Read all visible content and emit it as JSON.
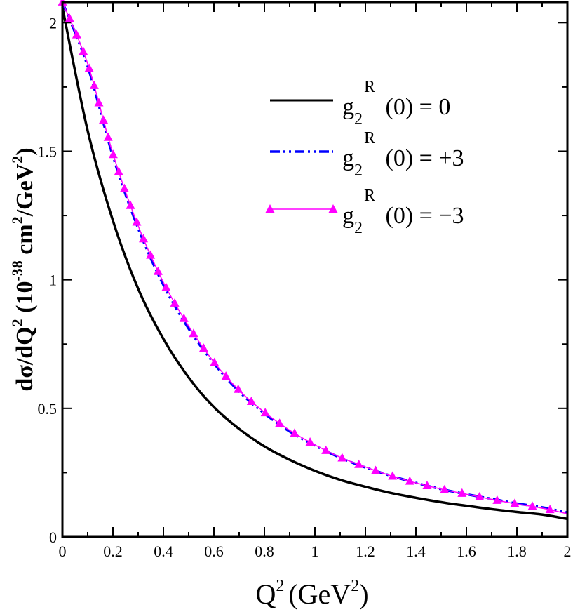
{
  "chart_data": {
    "type": "line",
    "title": "",
    "xlabel": {
      "base": "Q",
      "sup": "2",
      "units_open": "(GeV",
      "units_sup": "2",
      "units_close": ")"
    },
    "ylabel": {
      "part1": "d",
      "sigma": "σ",
      "part2": "/dQ",
      "sup1": "2",
      "part3": " (10",
      "sup2": "-38",
      "part4": " cm",
      "sup3": "2",
      "part5": "/GeV",
      "sup4": "2",
      "part6": ")"
    },
    "xlim": [
      0,
      2
    ],
    "ylim": [
      0,
      2.08
    ],
    "x_ticks": [
      {
        "value": 0,
        "label": "0"
      },
      {
        "value": 0.2,
        "label": "0.2"
      },
      {
        "value": 0.4,
        "label": "0.4"
      },
      {
        "value": 0.6,
        "label": "0.6"
      },
      {
        "value": 0.8,
        "label": "0.8"
      },
      {
        "value": 1,
        "label": "1"
      },
      {
        "value": 1.2,
        "label": "1.2"
      },
      {
        "value": 1.4,
        "label": "1.4"
      },
      {
        "value": 1.6,
        "label": "1.6"
      },
      {
        "value": 1.8,
        "label": "1.8"
      },
      {
        "value": 2,
        "label": "2"
      }
    ],
    "x_minor_ticks": [
      0.1,
      0.3,
      0.5,
      0.7,
      0.9,
      1.1,
      1.3,
      1.5,
      1.7,
      1.9
    ],
    "y_ticks": [
      {
        "value": 0,
        "label": "0"
      },
      {
        "value": 0.5,
        "label": "0.5"
      },
      {
        "value": 1,
        "label": "1"
      },
      {
        "value": 1.5,
        "label": "1.5"
      },
      {
        "value": 2,
        "label": "2"
      }
    ],
    "y_minor_ticks": [
      0.25,
      0.75,
      1.25,
      1.75
    ],
    "grid": false,
    "legend_position": "top-right",
    "series": [
      {
        "name": "g2R(0) = 0",
        "legend": {
          "g": "g",
          "sub": "2",
          "sup": "R",
          "rest": " (0) = 0"
        },
        "color": "#000000",
        "style": "solid",
        "x": [
          0,
          0.1,
          0.2,
          0.3,
          0.4,
          0.5,
          0.6,
          0.7,
          0.8,
          0.9,
          1.0,
          1.1,
          1.2,
          1.3,
          1.4,
          1.5,
          1.6,
          1.7,
          1.8,
          1.9,
          2.0
        ],
        "y": [
          2.06,
          1.58,
          1.23,
          0.965,
          0.77,
          0.62,
          0.505,
          0.42,
          0.352,
          0.3,
          0.257,
          0.222,
          0.195,
          0.171,
          0.152,
          0.135,
          0.121,
          0.108,
          0.097,
          0.087,
          0.07
        ]
      },
      {
        "name": "g2R(0) = +3",
        "legend": {
          "g": "g",
          "sub": "2",
          "sup": "R",
          "rest": " (0) = +3"
        },
        "color": "#0000ff",
        "style": "dash-dot",
        "x": [
          0,
          0.1,
          0.2,
          0.3,
          0.4,
          0.5,
          0.6,
          0.7,
          0.8,
          0.9,
          1.0,
          1.1,
          1.2,
          1.3,
          1.4,
          1.5,
          1.6,
          1.7,
          1.8,
          1.9,
          2.0
        ],
        "y": [
          2.08,
          1.83,
          1.48,
          1.2,
          0.98,
          0.81,
          0.675,
          0.565,
          0.48,
          0.41,
          0.355,
          0.308,
          0.27,
          0.238,
          0.21,
          0.186,
          0.166,
          0.148,
          0.13,
          0.115,
          0.095
        ]
      },
      {
        "name": "g2R(0) = -3",
        "legend": {
          "g": "g",
          "sub": "2",
          "sup": "R",
          "rest": " (0) = −3"
        },
        "color": "#ff00ff",
        "style": "solid-triangles",
        "x": [
          0,
          0.1,
          0.2,
          0.3,
          0.4,
          0.5,
          0.6,
          0.7,
          0.8,
          0.9,
          1.0,
          1.1,
          1.2,
          1.3,
          1.4,
          1.5,
          1.6,
          1.7,
          1.8,
          1.9,
          2.0
        ],
        "y": [
          2.08,
          1.84,
          1.49,
          1.21,
          0.99,
          0.82,
          0.68,
          0.57,
          0.485,
          0.415,
          0.358,
          0.31,
          0.272,
          0.238,
          0.21,
          0.186,
          0.166,
          0.146,
          0.128,
          0.112,
          0.09
        ]
      }
    ]
  }
}
